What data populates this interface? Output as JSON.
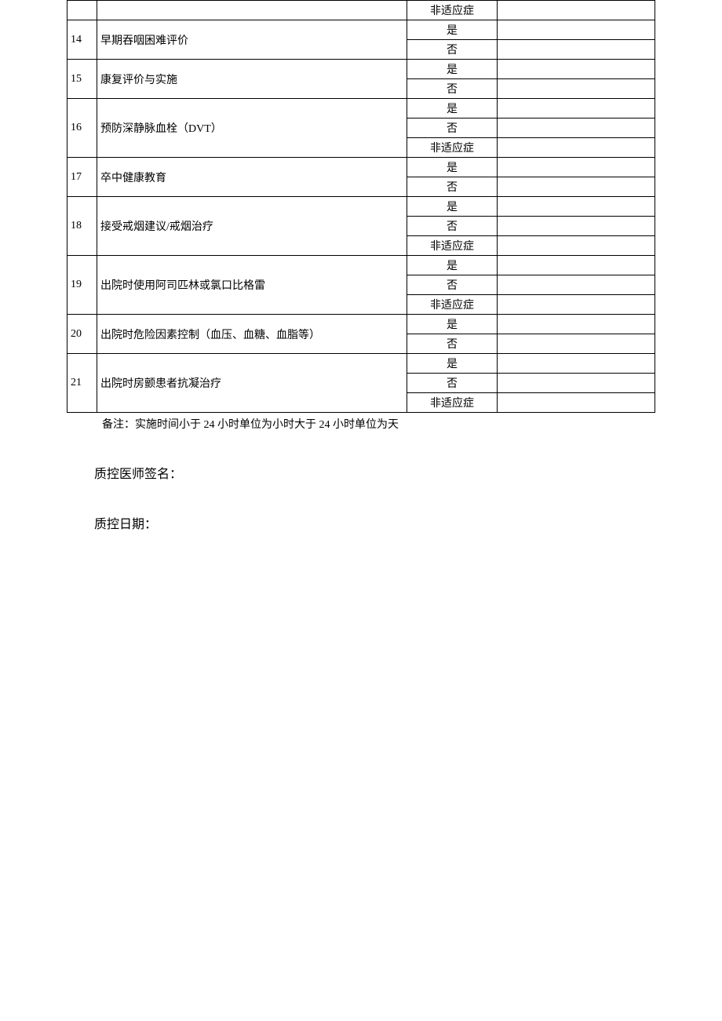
{
  "table": {
    "colors": {
      "border": "#000000",
      "background": "#ffffff",
      "text": "#000000"
    },
    "font_size": 14,
    "column_widths": {
      "num": 38,
      "desc": 395,
      "opt": 115
    },
    "options": {
      "yes": "是",
      "no": "否",
      "na": "非适应症"
    },
    "rows": [
      {
        "num": "",
        "desc": "",
        "opts": [
          "na"
        ]
      },
      {
        "num": "14",
        "desc": "早期吞咽困难评价",
        "opts": [
          "yes",
          "no"
        ]
      },
      {
        "num": "15",
        "desc": "康复评价与实施",
        "opts": [
          "yes",
          "no"
        ]
      },
      {
        "num": "16",
        "desc": "预防深静脉血栓（DVT）",
        "opts": [
          "yes",
          "no",
          "na"
        ]
      },
      {
        "num": "17",
        "desc": "卒中健康教育",
        "opts": [
          "yes",
          "no"
        ]
      },
      {
        "num": "18",
        "desc": "接受戒烟建议/戒烟治疗",
        "opts": [
          "yes",
          "no",
          "na"
        ]
      },
      {
        "num": "19",
        "desc": "出院时使用阿司匹林或氯口比格雷",
        "opts": [
          "yes",
          "no",
          "na"
        ]
      },
      {
        "num": "20",
        "desc": "出院时危险因素控制（血压、血糖、血脂等）",
        "opts": [
          "yes",
          "no"
        ]
      },
      {
        "num": "21",
        "desc": "出院时房颤患者抗凝治疗",
        "opts": [
          "yes",
          "no",
          "na"
        ]
      }
    ]
  },
  "note": "备注：实施时间小于 24 小时单位为小时大于 24 小时单位为天",
  "signatures": {
    "doctor_label": "质控医师签名：",
    "date_label": "质控日期："
  }
}
